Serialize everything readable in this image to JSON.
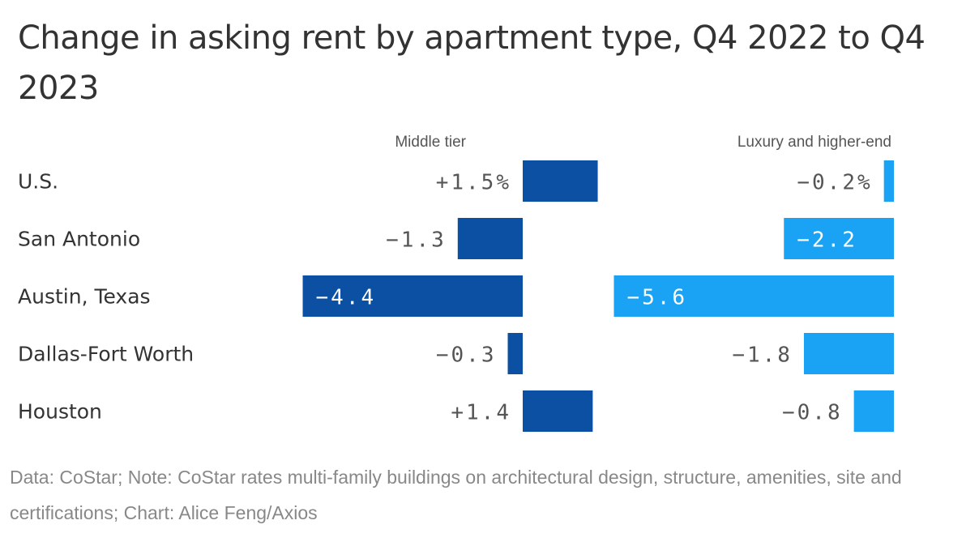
{
  "title": "Change in asking rent by apartment type, Q4 2022 to Q4 2023",
  "footer": "Data: CoStar; Note: CoStar rates multi-family buildings on architectural design, structure, amenities, site and certifications; Chart: Alice Feng/Axios",
  "colors": {
    "middle": "#0b50a3",
    "luxury": "#1aa3f5",
    "text": "#333333",
    "label": "#555555"
  },
  "chart_data": {
    "type": "bar",
    "categories": [
      "U.S.",
      "San Antonio",
      "Austin, Texas",
      "Dallas-Fort Worth",
      "Houston"
    ],
    "series": [
      {
        "name": "Middle tier",
        "values": [
          1.5,
          -1.3,
          -4.4,
          -0.3,
          1.4
        ],
        "labels": [
          "+1.5%",
          "−1.3",
          "−4.4",
          "−0.3",
          "+1.4"
        ]
      },
      {
        "name": "Luxury and higher-end",
        "values": [
          -0.2,
          -2.2,
          -5.6,
          -1.8,
          -0.8
        ],
        "labels": [
          "−0.2%",
          "−2.2",
          "−5.6",
          "−1.8",
          "−0.8"
        ]
      }
    ],
    "unit": "%",
    "grid": false,
    "legend": "column headers above each panel"
  }
}
